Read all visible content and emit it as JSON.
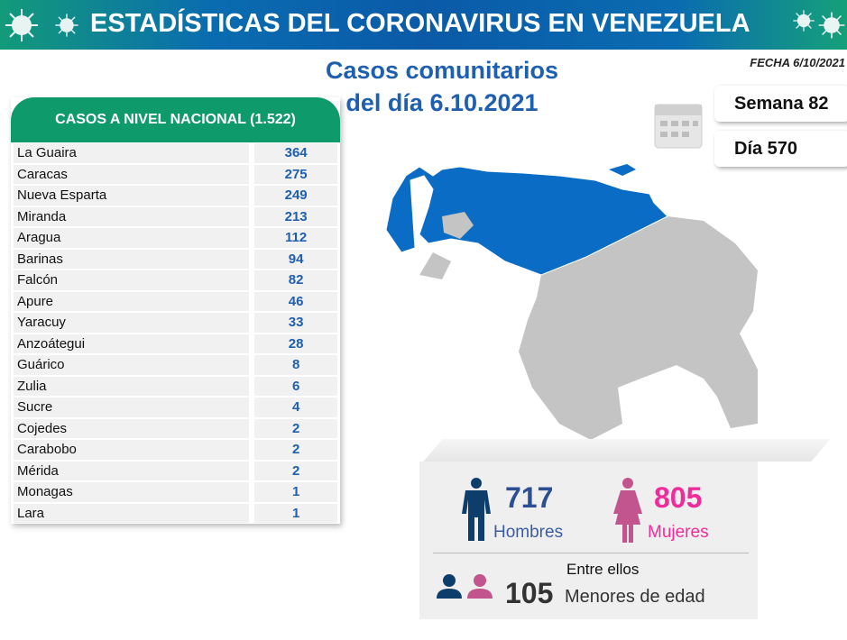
{
  "header": {
    "title": "ESTADÍSTICAS DEL CORONAVIRUS EN VENEZUELA",
    "date": "FECHA 6/10/2021"
  },
  "subtitle": {
    "line1": "Casos comunitarios",
    "line2": "del día 6.10.2021"
  },
  "table": {
    "title": "CASOS A NIVEL NACIONAL (1.522)",
    "rows": [
      {
        "name": "La Guaira",
        "value": "364"
      },
      {
        "name": "Caracas",
        "value": "275"
      },
      {
        "name": "Nueva Esparta",
        "value": "249"
      },
      {
        "name": "Miranda",
        "value": "213"
      },
      {
        "name": "Aragua",
        "value": "112"
      },
      {
        "name": "Barinas",
        "value": "94"
      },
      {
        "name": "Falcón",
        "value": "82"
      },
      {
        "name": "Apure",
        "value": "46"
      },
      {
        "name": "Yaracuy",
        "value": "33"
      },
      {
        "name": "Anzoátegui",
        "value": "28"
      },
      {
        "name": "Guárico",
        "value": "8"
      },
      {
        "name": "Zulia",
        "value": "6"
      },
      {
        "name": "Sucre",
        "value": "4"
      },
      {
        "name": "Cojedes",
        "value": "2"
      },
      {
        "name": "Carabobo",
        "value": "2"
      },
      {
        "name": "Mérida",
        "value": "2"
      },
      {
        "name": "Monagas",
        "value": "1"
      },
      {
        "name": "Lara",
        "value": "1"
      }
    ]
  },
  "week": "Semana 82",
  "day": "Día 570",
  "stats": {
    "men": "717",
    "men_label": "Hombres",
    "women": "805",
    "women_label": "Mujeres",
    "minors_pre": "Entre ellos",
    "minors": "105",
    "minors_label": "Menores de edad"
  },
  "colors": {
    "affected": "#0a6cc4",
    "unaffected": "#c4c4c4",
    "men": "#0d3d6b",
    "women": "#c2548e",
    "women_number": "#ee2d9b",
    "accent": "#1f5fb0",
    "table_header": "#0f9a6c"
  }
}
